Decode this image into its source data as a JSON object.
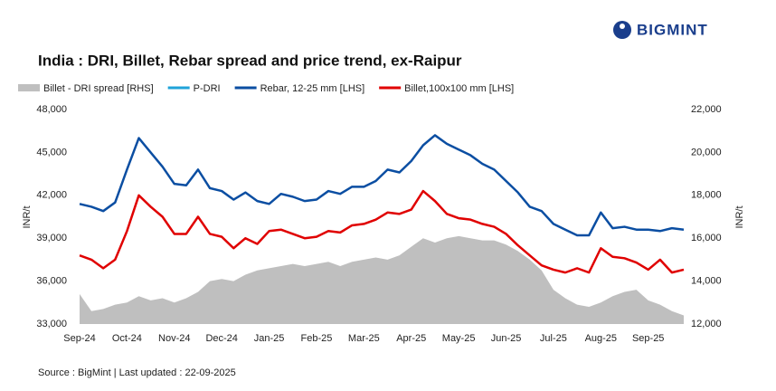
{
  "brand": "BIGMINT",
  "source": "Source : BigMint | Last updated : 22-09-2025",
  "chart_data": {
    "type": "line",
    "title": "India : DRI, Billet, Rebar spread and price trend, ex-Raipur",
    "ylabel": "INR/t",
    "y2label": "INR/t",
    "categories": [
      "Sep-24",
      null,
      null,
      null,
      "Oct-24",
      null,
      null,
      null,
      "Nov-24",
      null,
      null,
      null,
      "Dec-24",
      null,
      null,
      null,
      "Jan-25",
      null,
      null,
      null,
      "Feb-25",
      null,
      null,
      null,
      "Mar-25",
      null,
      null,
      null,
      "Apr-25",
      null,
      null,
      null,
      "May-25",
      null,
      null,
      null,
      "Jun-25",
      null,
      null,
      null,
      "Jul-25",
      null,
      null,
      null,
      "Aug-25",
      null,
      null,
      null,
      "Sep-25",
      null,
      null,
      null
    ],
    "ylim": [
      33000,
      48000
    ],
    "yticks": [
      {
        "value": 33000,
        "label": "33,000"
      },
      {
        "value": 36000,
        "label": "36,000"
      },
      {
        "value": 39000,
        "label": "39,000"
      },
      {
        "value": 42000,
        "label": "42,000"
      },
      {
        "value": 45000,
        "label": "45,000"
      },
      {
        "value": 48000,
        "label": "48,000"
      }
    ],
    "y2lim": [
      12000,
      22000
    ],
    "y2ticks": [
      {
        "value": 12000,
        "label": "12,000"
      },
      {
        "value": 14000,
        "label": "14,000"
      },
      {
        "value": 16000,
        "label": "16,000"
      },
      {
        "value": 18000,
        "label": "18,000"
      },
      {
        "value": 20000,
        "label": "20,000"
      },
      {
        "value": 22000,
        "label": "22,000"
      }
    ],
    "series": [
      {
        "name": "Billet - DRI spread  [RHS]",
        "type": "area",
        "axis": "y2",
        "color": "#bfbfbf",
        "values": [
          13400,
          12600,
          12700,
          12900,
          13000,
          13300,
          13100,
          13200,
          13000,
          13200,
          13500,
          14000,
          14100,
          14000,
          14300,
          14500,
          14600,
          14700,
          14800,
          14700,
          14800,
          14900,
          14700,
          14900,
          15000,
          15100,
          15000,
          15200,
          15600,
          16000,
          15800,
          16000,
          16100,
          16000,
          15900,
          15900,
          15700,
          15400,
          15000,
          14500,
          13600,
          13200,
          12900,
          12800,
          13000,
          13300,
          13500,
          13600,
          13100,
          12900,
          12600,
          12400
        ]
      },
      {
        "name": "P-DRI",
        "type": "line",
        "color": "#1fa3d9",
        "values": [
          null,
          null,
          null,
          null,
          null,
          null,
          null,
          null,
          null,
          null,
          null,
          null,
          null,
          null,
          null,
          null,
          null,
          null,
          null,
          null,
          null,
          null,
          null,
          null,
          null,
          null,
          null,
          null,
          null,
          null,
          null,
          null,
          null,
          null,
          null,
          null,
          null,
          null,
          null,
          null,
          null,
          null,
          null,
          null,
          null,
          null,
          null,
          null,
          null,
          null,
          null,
          null
        ]
      },
      {
        "name": "Rebar, 12-25 mm [LHS]",
        "type": "line",
        "color": "#0b4ea2",
        "values": [
          41400,
          41200,
          40900,
          41500,
          43800,
          46000,
          45000,
          44000,
          42800,
          42700,
          43800,
          42500,
          42300,
          41700,
          42200,
          41600,
          41400,
          42100,
          41900,
          41600,
          41700,
          42300,
          42100,
          42600,
          42600,
          43000,
          43800,
          43600,
          44400,
          45500,
          46200,
          45600,
          45200,
          44800,
          44200,
          43800,
          43000,
          42200,
          41200,
          40900,
          40000,
          39600,
          39200,
          39200,
          40800,
          39700,
          39800,
          39600,
          39600,
          39500,
          39700,
          39600
        ]
      },
      {
        "name": "Billet,100x100 mm [LHS]",
        "type": "line",
        "color": "#e00000",
        "values": [
          37800,
          37500,
          36900,
          37500,
          39500,
          42000,
          41200,
          40500,
          39300,
          39300,
          40500,
          39300,
          39100,
          38300,
          39000,
          38600,
          39500,
          39600,
          39300,
          39000,
          39100,
          39500,
          39400,
          39900,
          40000,
          40300,
          40800,
          40700,
          41000,
          42300,
          41600,
          40700,
          40400,
          40300,
          40000,
          39800,
          39300,
          38500,
          37800,
          37100,
          36800,
          36600,
          36900,
          36600,
          38300,
          37700,
          37600,
          37300,
          36800,
          37500,
          36600,
          36800
        ]
      }
    ]
  }
}
